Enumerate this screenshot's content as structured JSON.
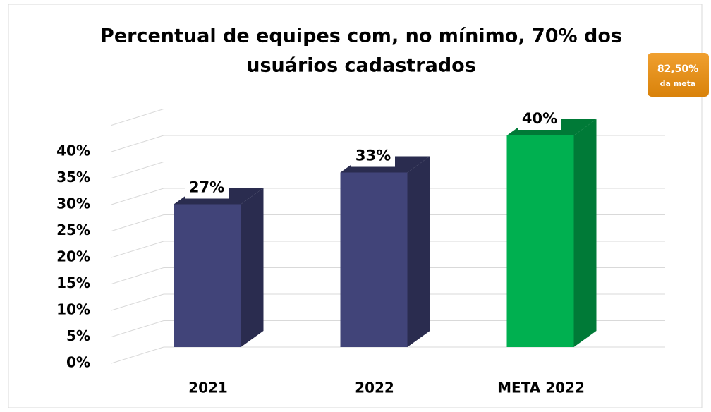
{
  "chart_data": {
    "type": "bar",
    "title": [
      "Percentual de equipes com, no mínimo, 70% dos",
      "usuários cadastrados"
    ],
    "categories": [
      "2021",
      "2022",
      "META 2022"
    ],
    "values": [
      27,
      33,
      40
    ],
    "value_labels": [
      "27%",
      "33%",
      "40%"
    ],
    "colors": [
      "#414479",
      "#414479",
      "#00b050"
    ],
    "side_colors": [
      "#2a2c4f",
      "#2a2c4f",
      "#007a37"
    ],
    "ylim": [
      0,
      45
    ],
    "yticks": [
      {
        "value": 0,
        "label": "0%"
      },
      {
        "value": 5,
        "label": "5%"
      },
      {
        "value": 10,
        "label": "10%"
      },
      {
        "value": 15,
        "label": "15%"
      },
      {
        "value": 20,
        "label": "20%"
      },
      {
        "value": 25,
        "label": "25%"
      },
      {
        "value": 30,
        "label": "30%"
      },
      {
        "value": 35,
        "label": "35%"
      },
      {
        "value": 40,
        "label": "40%"
      }
    ],
    "grid": true,
    "annotation": [
      "82,50%",
      "da meta"
    ]
  }
}
